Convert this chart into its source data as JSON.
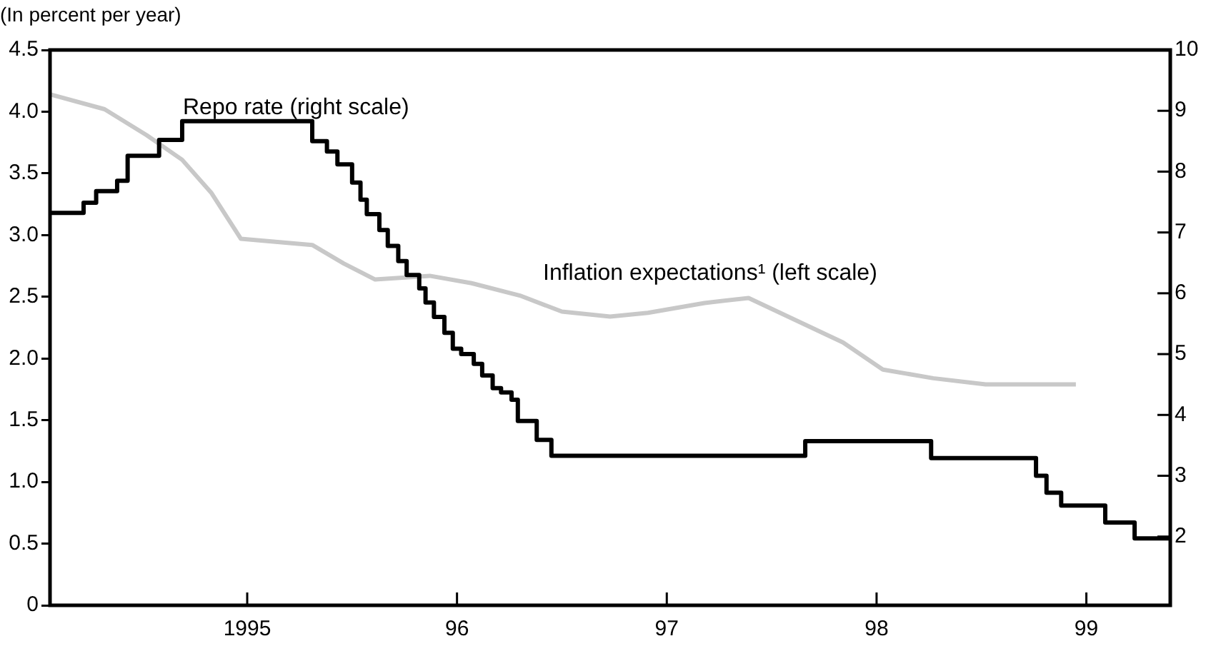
{
  "chart_data": {
    "type": "line",
    "ylabel": "(In percent per year)",
    "xlim": [
      1994.06,
      1999.4
    ],
    "xticks": [
      {
        "value": 1995,
        "label": "1995"
      },
      {
        "value": 1996,
        "label": "96"
      },
      {
        "value": 1997,
        "label": "97"
      },
      {
        "value": 1998,
        "label": "98"
      },
      {
        "value": 1999,
        "label": "99"
      }
    ],
    "ylim": [
      0,
      4.5
    ],
    "yticks": [
      0,
      0.5,
      {
        "value": 1,
        "label": "1.0"
      },
      1.5,
      {
        "value": 2,
        "label": "2.0"
      },
      2.5,
      {
        "value": 3,
        "label": "3.0"
      },
      3.5,
      {
        "value": 4,
        "label": "4.0"
      },
      4.5
    ],
    "y2lim": [
      0.87,
      10
    ],
    "y2ticks": [
      2,
      3,
      4,
      5,
      6,
      7,
      8,
      9,
      10
    ],
    "grid": false,
    "legend": false,
    "marker": "none",
    "series": [
      {
        "name": "Inflation expectations¹ (left scale)",
        "type": "line",
        "color": "#c8c8c8",
        "axis": "y",
        "x": [
          1994.06,
          1994.32,
          1994.52,
          1994.69,
          1994.83,
          1994.97,
          1995.31,
          1995.46,
          1995.61,
          1995.87,
          1996.07,
          1996.3,
          1996.5,
          1996.73,
          1996.91,
          1997.18,
          1997.39,
          1997.84,
          1998.03,
          1998.27,
          1998.52,
          1998.95
        ],
        "values": [
          4.14,
          4.02,
          3.81,
          3.61,
          3.34,
          2.97,
          2.92,
          2.77,
          2.64,
          2.67,
          2.61,
          2.51,
          2.38,
          2.34,
          2.37,
          2.45,
          2.49,
          2.13,
          1.91,
          1.84,
          1.79,
          1.79
        ]
      },
      {
        "name": "Repo rate (right scale)",
        "type": "step",
        "color": "#000000",
        "axis": "y2",
        "x": [
          1994.06,
          1994.22,
          1994.28,
          1994.38,
          1994.43,
          1994.58,
          1994.69,
          1995.31,
          1995.38,
          1995.43,
          1995.5,
          1995.54,
          1995.57,
          1995.63,
          1995.67,
          1995.72,
          1995.76,
          1995.82,
          1995.85,
          1995.89,
          1995.94,
          1995.98,
          1996.02,
          1996.08,
          1996.12,
          1996.17,
          1996.21,
          1996.26,
          1996.29,
          1996.38,
          1996.45,
          1997.66,
          1998.26,
          1998.76,
          1998.81,
          1998.88,
          1999.09,
          1999.23,
          1999.4
        ],
        "values": [
          7.32,
          7.49,
          7.68,
          7.85,
          8.26,
          8.52,
          8.83,
          8.5,
          8.33,
          8.12,
          7.82,
          7.54,
          7.3,
          7.04,
          6.78,
          6.53,
          6.3,
          6.08,
          5.85,
          5.61,
          5.35,
          5.09,
          5.0,
          4.84,
          4.65,
          4.44,
          4.37,
          4.25,
          3.9,
          3.59,
          3.33,
          3.57,
          3.29,
          3.0,
          2.72,
          2.51,
          2.23,
          1.97,
          1.97
        ]
      }
    ]
  }
}
